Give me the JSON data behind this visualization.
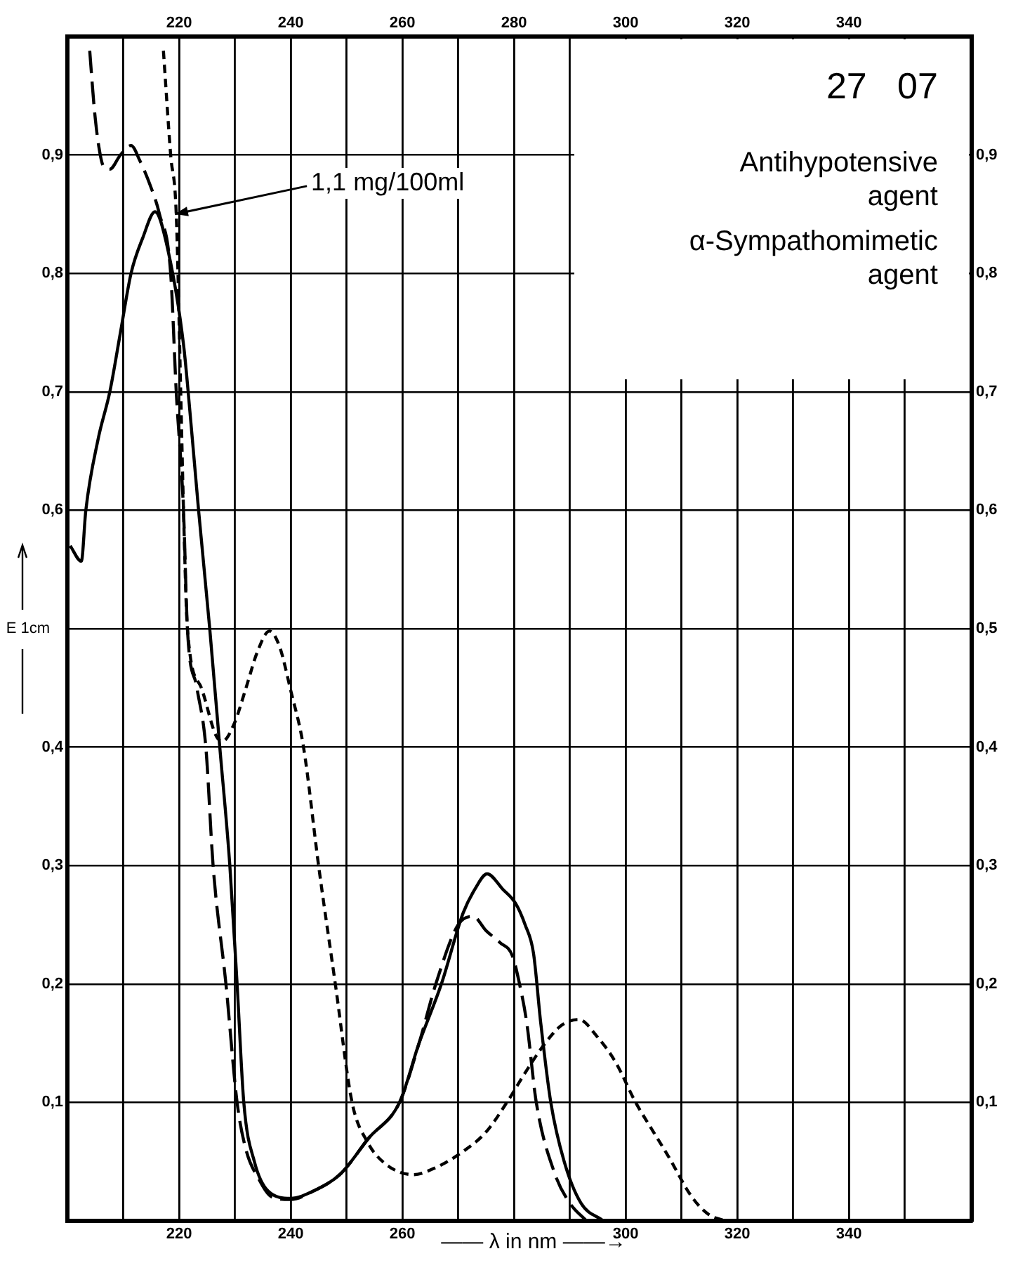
{
  "chart_data": {
    "type": "line",
    "xlabel": "—— λ in nm ——→",
    "ylabel": "E 1cm",
    "annotations": [
      {
        "text": "1,1 mg/100ml",
        "x": 218.5,
        "y": 0.85
      },
      "27   07",
      "Antihypotensive\nagent",
      "α-Sympathomimetic\nagent"
    ],
    "xlim": [
      200,
      362
    ],
    "ylim": [
      0,
      1
    ],
    "x2lim": [
      200,
      362
    ],
    "y2lim": [
      0,
      1
    ],
    "xticks": [
      {
        "value": 210,
        "label": null
      },
      220,
      {
        "value": 230,
        "label": null
      },
      240,
      {
        "value": 250,
        "label": null
      },
      260,
      {
        "value": 270,
        "label": null
      },
      {
        "value": 280,
        "label": null
      },
      {
        "value": 290,
        "label": null
      },
      300,
      {
        "value": 310,
        "label": null
      },
      320,
      {
        "value": 330,
        "label": null
      },
      340,
      {
        "value": 350,
        "label": null
      }
    ],
    "x2ticks": [
      {
        "value": 210,
        "label": null
      },
      220,
      {
        "value": 230,
        "label": null
      },
      240,
      {
        "value": 250,
        "label": null
      },
      260,
      {
        "value": 270,
        "label": null
      },
      280,
      {
        "value": 290,
        "label": null
      },
      300,
      {
        "value": 310,
        "label": null
      },
      320,
      {
        "value": 330,
        "label": null
      },
      340,
      {
        "value": 350,
        "label": null
      }
    ],
    "yticks": [
      {
        "value": 0.1,
        "label": "0,1"
      },
      {
        "value": 0.2,
        "label": "0,2"
      },
      {
        "value": 0.3,
        "label": "0,3"
      },
      {
        "value": 0.4,
        "label": "0,4"
      },
      {
        "value": 0.5,
        "label": null
      },
      {
        "value": 0.6,
        "label": "0,6"
      },
      {
        "value": 0.7,
        "label": "0,7"
      },
      {
        "value": 0.8,
        "label": "0,8"
      },
      {
        "value": 0.9,
        "label": "0,9"
      }
    ],
    "y2ticks": [
      {
        "value": 0.1,
        "label": "0,1"
      },
      {
        "value": 0.2,
        "label": "0,2"
      },
      {
        "value": 0.3,
        "label": "0,3"
      },
      {
        "value": 0.4,
        "label": "0,4"
      },
      {
        "value": 0.5,
        "label": "0,5"
      },
      {
        "value": 0.6,
        "label": "0,6"
      },
      {
        "value": 0.7,
        "label": "0,7"
      },
      {
        "value": 0.8,
        "label": "0,8"
      },
      {
        "value": 0.9,
        "label": "0,9"
      }
    ],
    "grid": true,
    "legend": false,
    "marker": "none",
    "series": [
      {
        "color": "#000000",
        "line_style": "solid",
        "x": [
          200.5,
          202.5,
          203.3,
          205.5,
          207.6,
          209.5,
          211.4,
          213.5,
          215.7,
          218,
          220.8,
          222.2,
          223.5,
          225.5,
          227.3,
          229.1,
          230.4,
          231.6,
          233.5,
          236,
          240,
          244,
          249,
          254,
          259.5,
          263,
          267,
          270.9,
          273,
          275.2,
          278,
          280.3,
          282,
          283.5,
          284.8,
          286.6,
          289,
          292,
          296
        ],
        "values": [
          0.57,
          0.557,
          0.6,
          0.66,
          0.7,
          0.75,
          0.8,
          0.83,
          0.852,
          0.82,
          0.74,
          0.67,
          0.6,
          0.5,
          0.4,
          0.3,
          0.2,
          0.1,
          0.05,
          0.025,
          0.019,
          0.025,
          0.04,
          0.07,
          0.1,
          0.15,
          0.2,
          0.26,
          0.28,
          0.293,
          0.28,
          0.268,
          0.25,
          0.226,
          0.167,
          0.1,
          0.05,
          0.015,
          0
        ]
      },
      {
        "color": "#000000",
        "line_style": "dashed",
        "x": [
          204,
          204.8,
          205.6,
          206.5,
          207.6,
          209.5,
          211.4,
          213,
          214.7,
          216.5,
          218.5,
          219.5,
          220.8,
          221.5,
          223.2,
          224.8,
          226.1,
          228.4,
          230.4,
          232,
          234.2,
          236.7,
          240,
          244,
          249,
          254,
          259.5,
          263,
          266,
          270,
          272.7,
          275,
          277.5,
          279.7,
          281,
          282.3,
          284,
          287.3,
          290,
          293
        ],
        "values": [
          0.988,
          0.94,
          0.908,
          0.89,
          0.888,
          0.9,
          0.908,
          0.895,
          0.876,
          0.85,
          0.8,
          0.7,
          0.6,
          0.5,
          0.45,
          0.4,
          0.3,
          0.2,
          0.1,
          0.06,
          0.036,
          0.02,
          0.018,
          0.025,
          0.04,
          0.07,
          0.1,
          0.15,
          0.2,
          0.25,
          0.257,
          0.245,
          0.235,
          0.224,
          0.2,
          0.167,
          0.1,
          0.04,
          0.015,
          0
        ]
      },
      {
        "color": "#000000",
        "line_style": "dotted",
        "x": [
          217.2,
          218.5,
          219.5,
          220.3,
          220.8,
          221.5,
          224,
          226.6,
          227.8,
          229.9,
          232,
          234,
          236.2,
          238,
          240,
          242.3,
          245,
          248,
          251,
          253.7,
          257,
          262,
          266,
          270.4,
          275,
          279,
          282,
          285.6,
          288.5,
          291.6,
          295,
          298.2,
          301.8,
          305,
          307.6,
          311.9,
          315,
          318
        ],
        "values": [
          0.988,
          0.9,
          0.85,
          0.7,
          0.6,
          0.5,
          0.45,
          0.41,
          0.405,
          0.42,
          0.45,
          0.48,
          0.498,
          0.485,
          0.448,
          0.4,
          0.3,
          0.2,
          0.1,
          0.067,
          0.048,
          0.039,
          0.045,
          0.057,
          0.075,
          0.102,
          0.125,
          0.15,
          0.165,
          0.17,
          0.155,
          0.134,
          0.1,
          0.075,
          0.055,
          0.02,
          0.005,
          0
        ]
      }
    ]
  }
}
